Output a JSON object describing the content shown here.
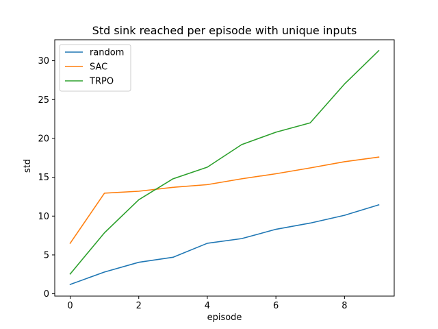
{
  "chart_data": {
    "type": "line",
    "title": "Std sink reached per episode with unique inputs",
    "xlabel": "episode",
    "ylabel": "std",
    "xlim": [
      -0.45,
      9.45
    ],
    "ylim": [
      -0.3,
      32.7
    ],
    "x_ticks": [
      0,
      2,
      4,
      6,
      8
    ],
    "y_ticks": [
      0,
      5,
      10,
      15,
      20,
      25,
      30
    ],
    "grid": false,
    "legend_position": "top-left",
    "x": [
      0,
      1,
      2,
      3,
      4,
      5,
      6,
      7,
      8,
      9
    ],
    "series": [
      {
        "name": "random",
        "color": "#1f77b4",
        "values": [
          1.2,
          2.8,
          4.05,
          4.7,
          6.5,
          7.1,
          8.3,
          9.1,
          10.1,
          11.45
        ]
      },
      {
        "name": "SAC",
        "color": "#ff7f0e",
        "values": [
          6.5,
          12.95,
          13.2,
          13.7,
          14.05,
          14.8,
          15.45,
          16.2,
          17.0,
          17.6
        ]
      },
      {
        "name": "TRPO",
        "color": "#2ca02c",
        "values": [
          2.55,
          7.85,
          12.1,
          14.8,
          16.3,
          19.2,
          20.8,
          22.0,
          27.0,
          31.3
        ]
      }
    ]
  }
}
